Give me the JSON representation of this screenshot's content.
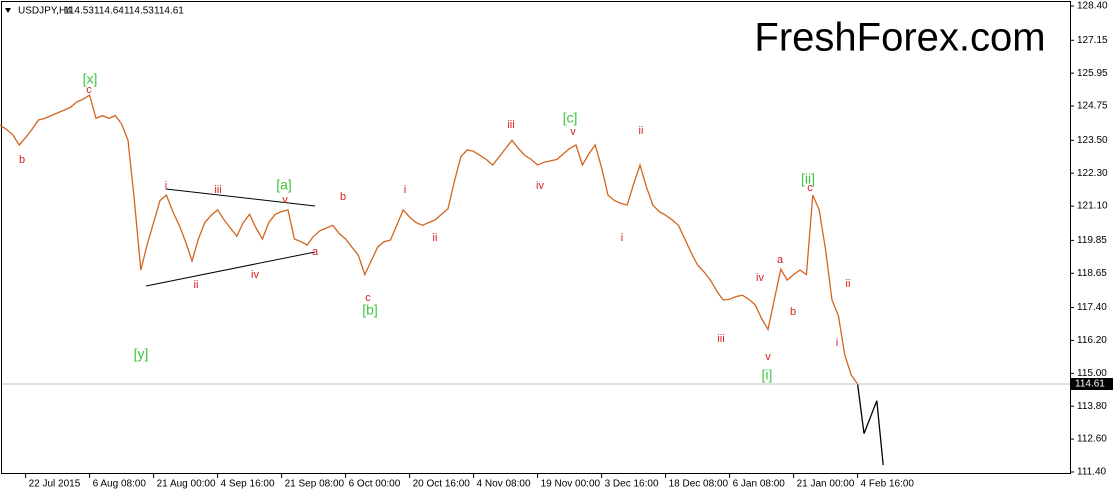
{
  "chart_data": {
    "type": "line",
    "symbol": "USDJPY,H4",
    "ohlc": [
      114.53,
      114.64,
      114.53,
      114.61
    ],
    "title": "FreshForex.com",
    "title_color": "#2fd42f",
    "last_price": 114.61,
    "categories": [
      null,
      null,
      null,
      null,
      "22 Jul 2015",
      null,
      null,
      null,
      null,
      null,
      null,
      null,
      null,
      null,
      "6 Aug 08:00",
      null,
      null,
      null,
      null,
      null,
      null,
      null,
      null,
      null,
      "21 Aug 00:00",
      null,
      null,
      null,
      null,
      null,
      null,
      null,
      null,
      null,
      "4 Sep 16:00",
      null,
      null,
      null,
      null,
      null,
      null,
      null,
      null,
      null,
      "21 Sep 08:00",
      null,
      null,
      null,
      null,
      null,
      null,
      null,
      null,
      null,
      "6 Oct 00:00",
      null,
      null,
      null,
      null,
      null,
      null,
      null,
      null,
      null,
      "20 Oct 16:00",
      null,
      null,
      null,
      null,
      null,
      null,
      null,
      null,
      null,
      "4 Nov 08:00",
      null,
      null,
      null,
      null,
      null,
      null,
      null,
      null,
      null,
      "19 Nov 00:00",
      null,
      null,
      null,
      null,
      null,
      null,
      null,
      null,
      null,
      "3 Dec 16:00",
      null,
      null,
      null,
      null,
      null,
      null,
      null,
      null,
      null,
      "18 Dec 08:00",
      null,
      null,
      null,
      null,
      null,
      null,
      null,
      null,
      null,
      "6 Jan 08:00",
      null,
      null,
      null,
      null,
      null,
      null,
      null,
      null,
      null,
      "21 Jan 00:00",
      null,
      null,
      null,
      null,
      null,
      null,
      null,
      null,
      null,
      "4 Feb 16:00",
      null,
      null,
      null,
      null
    ],
    "series": [
      {
        "color": "#d2651e",
        "values": [
          124.06,
          123.9,
          123.7,
          123.33,
          123.6,
          123.9,
          124.24,
          124.3,
          124.4,
          124.5,
          124.6,
          124.7,
          124.9,
          125.0,
          125.15,
          124.3,
          124.4,
          124.3,
          124.4,
          124.1,
          123.5,
          121.3,
          118.77,
          119.7,
          120.5,
          121.3,
          121.5,
          120.9,
          120.4,
          119.8,
          119.1,
          119.9,
          120.5,
          120.77,
          120.96,
          120.6,
          120.3,
          120.0,
          120.5,
          120.8,
          120.3,
          119.9,
          120.5,
          120.8,
          120.9,
          120.96,
          119.9,
          119.8,
          119.68,
          120.0,
          120.2,
          120.3,
          120.4,
          120.1,
          119.9,
          119.6,
          119.3,
          118.6,
          119.1,
          119.6,
          119.8,
          119.86,
          120.4,
          120.96,
          120.7,
          120.5,
          120.4,
          120.5,
          120.6,
          120.8,
          121.0,
          122.0,
          122.9,
          123.15,
          123.1,
          122.95,
          122.8,
          122.6,
          122.9,
          123.2,
          123.5,
          123.2,
          122.95,
          122.8,
          122.6,
          122.7,
          122.75,
          122.8,
          123.0,
          123.2,
          123.33,
          122.6,
          123.0,
          123.33,
          122.5,
          121.5,
          121.3,
          121.2,
          121.14,
          121.9,
          122.6,
          121.8,
          121.14,
          120.9,
          120.77,
          120.6,
          120.4,
          119.9,
          119.4,
          118.95,
          118.7,
          118.4,
          118.0,
          117.67,
          117.7,
          117.8,
          117.85,
          117.7,
          117.5,
          117.0,
          116.6,
          117.7,
          118.8,
          118.4,
          118.6,
          118.77,
          118.6,
          121.5,
          120.96,
          119.5,
          117.67,
          117.1,
          115.67,
          114.94,
          114.61,
          null,
          null,
          null,
          null
        ]
      },
      {
        "color": "#000000",
        "values": [
          null,
          null,
          null,
          null,
          null,
          null,
          null,
          null,
          null,
          null,
          null,
          null,
          null,
          null,
          null,
          null,
          null,
          null,
          null,
          null,
          null,
          null,
          null,
          null,
          null,
          null,
          null,
          null,
          null,
          null,
          null,
          null,
          null,
          null,
          null,
          null,
          null,
          null,
          null,
          null,
          null,
          null,
          null,
          null,
          null,
          null,
          null,
          null,
          null,
          null,
          null,
          null,
          null,
          null,
          null,
          null,
          null,
          null,
          null,
          null,
          null,
          null,
          null,
          null,
          null,
          null,
          null,
          null,
          null,
          null,
          null,
          null,
          null,
          null,
          null,
          null,
          null,
          null,
          null,
          null,
          null,
          null,
          null,
          null,
          null,
          null,
          null,
          null,
          null,
          null,
          null,
          null,
          null,
          null,
          null,
          null,
          null,
          null,
          null,
          null,
          null,
          null,
          null,
          null,
          null,
          null,
          null,
          null,
          null,
          null,
          null,
          null,
          null,
          null,
          null,
          null,
          null,
          null,
          null,
          null,
          null,
          null,
          null,
          null,
          null,
          null,
          null,
          null,
          null,
          null,
          null,
          null,
          null,
          null,
          114.61,
          112.8,
          113.4,
          114.0,
          111.65
        ]
      }
    ],
    "ylim": [
      111.4,
      128.4
    ],
    "yticks": [
      {
        "value": 128.4,
        "label": "128.40"
      },
      {
        "value": 127.15,
        "label": "127.15"
      },
      {
        "value": 125.95,
        "label": "125.95"
      },
      {
        "value": 124.75,
        "label": "124.75"
      },
      {
        "value": 123.5,
        "label": "123.50"
      },
      {
        "value": 122.3,
        "label": "122.30"
      },
      {
        "value": 121.1,
        "label": "121.10"
      },
      {
        "value": 119.85,
        "label": "119.85"
      },
      {
        "value": 118.65,
        "label": "118.65"
      },
      {
        "value": 117.4,
        "label": "117.40"
      },
      {
        "value": 116.2,
        "label": "116.20"
      },
      {
        "value": 115.0,
        "label": "115.00"
      },
      {
        "value": 113.8,
        "label": "113.80"
      },
      {
        "value": 112.6,
        "label": "112.60"
      },
      {
        "value": 111.4,
        "label": "111.40"
      }
    ],
    "annotations": [
      {
        "text": "[x]",
        "color": "#3ec43e"
      },
      {
        "text": "c",
        "color": "#d62020"
      },
      {
        "text": "b",
        "color": "#d62020"
      },
      {
        "text": "[y]",
        "color": "#3ec43e"
      },
      {
        "text": "i",
        "color": "#d62020"
      },
      {
        "text": "iii",
        "color": "#d62020"
      },
      {
        "text": "v",
        "color": "#d62020"
      },
      {
        "text": "[a]",
        "color": "#3ec43e"
      },
      {
        "text": "ii",
        "color": "#d62020"
      },
      {
        "text": "iv",
        "color": "#d62020"
      },
      {
        "text": "a",
        "color": "#d62020"
      },
      {
        "text": "b",
        "color": "#d62020"
      },
      {
        "text": "c",
        "color": "#d62020"
      },
      {
        "text": "[b]",
        "color": "#3ec43e"
      },
      {
        "text": "i",
        "color": "#d62020"
      },
      {
        "text": "ii",
        "color": "#d62020"
      },
      {
        "text": "iii",
        "color": "#d62020"
      },
      {
        "text": "[c]",
        "color": "#3ec43e"
      },
      {
        "text": "v",
        "color": "#d62020"
      },
      {
        "text": "iv",
        "color": "#d62020"
      },
      {
        "text": "ii",
        "color": "#d62020"
      },
      {
        "text": "i",
        "color": "#d62020"
      },
      {
        "text": "iii",
        "color": "#d62020"
      },
      {
        "text": "iv",
        "color": "#d62020"
      },
      {
        "text": "v",
        "color": "#d62020"
      },
      {
        "text": "[i]",
        "color": "#3ec43e"
      },
      {
        "text": "a",
        "color": "#d62020"
      },
      {
        "text": "b",
        "color": "#d62020"
      },
      {
        "text": "[ii]",
        "color": "#3ec43e"
      },
      {
        "text": "c",
        "color": "#d62020"
      },
      {
        "text": "ii",
        "color": "#d62020"
      },
      {
        "text": "i",
        "color": "#d62020"
      }
    ]
  }
}
